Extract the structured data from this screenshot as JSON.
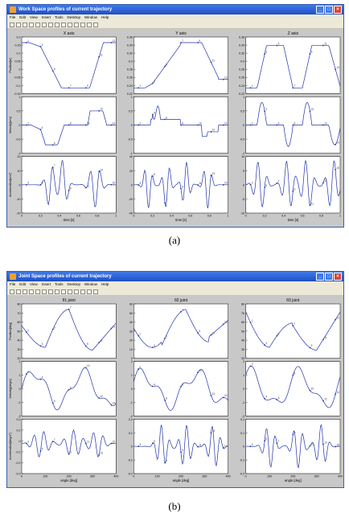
{
  "figure_a": {
    "window_title": "Work Space profiles of current trajectory",
    "caption": "(a)",
    "menu": [
      "File",
      "Edit",
      "View",
      "Insert",
      "Tools",
      "Desktop",
      "Window",
      "Help"
    ],
    "columns": [
      {
        "title": "X axis",
        "xlabel": "time [s]",
        "xlim": [
          0,
          1
        ]
      },
      {
        "title": "Y axis",
        "xlabel": "time [s]",
        "xlim": [
          0,
          1
        ]
      },
      {
        "title": "Z axis",
        "xlabel": "time [s]",
        "xlim": [
          0,
          1
        ]
      }
    ],
    "row_labels": [
      "Position[m]",
      "Velocity[m/s]",
      "Acceleration[m/s²]"
    ],
    "ticks": [
      [
        [
          "0.2",
          "0.15",
          "0.1",
          "0.05",
          "0",
          "-0.05",
          "-0.1",
          "-0.15"
        ],
        [
          "1",
          "0.5",
          "0",
          "-0.5",
          "-1"
        ],
        [
          "20",
          "10",
          "0",
          "-10",
          "-20"
        ]
      ],
      [
        [
          "0.36",
          "0.34",
          "0.32",
          "0.3",
          "0.28",
          "0.26",
          "0.24",
          "0.22"
        ],
        [
          "1",
          "0.5",
          "0",
          "-0.5",
          "-1"
        ],
        [
          "40",
          "20",
          "0",
          "-20",
          "-40"
        ]
      ],
      [
        [
          "0.36",
          "0.34",
          "0.32",
          "0.3",
          "0.28",
          "0.26",
          "0.24",
          "0.22"
        ],
        [
          "1",
          "0.5",
          "0",
          "-0.5",
          "-1"
        ],
        [
          "10",
          "5",
          "0",
          "-5",
          "-10"
        ]
      ]
    ],
    "xticks": [
      "0",
      "0.2",
      "0.4",
      "0.6",
      "0.8",
      "1"
    ]
  },
  "figure_b": {
    "window_title": "Joint Space profiles of current trajectory",
    "caption": "(b)",
    "menu": [
      "File",
      "Edit",
      "View",
      "Insert",
      "Tools",
      "Desktop",
      "Window",
      "Help"
    ],
    "columns": [
      {
        "title": "θ1 joint",
        "xlabel": "angle [deg]",
        "xlim": [
          0,
          400
        ]
      },
      {
        "title": "θ2 joint",
        "xlabel": "angle [deg]",
        "xlim": [
          0,
          400
        ]
      },
      {
        "title": "θ3 joint",
        "xlabel": "angle [deg]",
        "xlim": [
          0,
          400
        ]
      }
    ],
    "row_labels": [
      "Position[deg]",
      "Velocity[deg/s]",
      "Acceleration[deg/s²]"
    ],
    "ticks": [
      [
        [
          "80",
          "70",
          "60",
          "50",
          "40",
          "30",
          "20"
        ],
        [
          "2",
          "1",
          "0",
          "-1",
          "-2"
        ],
        [
          "0.2",
          "0.1",
          "0",
          "-0.1",
          "-0.2",
          "-0.3"
        ]
      ],
      [
        [
          "60",
          "50",
          "40",
          "30",
          "20",
          "10",
          "0"
        ],
        [
          "2",
          "1",
          "0",
          "-1",
          "-2"
        ],
        [
          "0.2",
          "0.1",
          "0",
          "-0.1",
          "-0.2"
        ]
      ],
      [
        [
          "80",
          "70",
          "60",
          "50",
          "40",
          "30",
          "20"
        ],
        [
          "2",
          "1",
          "0",
          "-1",
          "-2"
        ],
        [
          "0.2",
          "0.1",
          "0",
          "-0.1",
          "-0.2"
        ]
      ]
    ],
    "xticks": [
      "0",
      "100",
      "200",
      "300",
      "400"
    ]
  },
  "curve_color": "#2233aa",
  "point_labels": [
    "1",
    "2",
    "3",
    "4",
    "5",
    "6",
    "7",
    "8",
    "9",
    "10",
    "11",
    "12",
    "13",
    "14",
    "15",
    "16",
    "17",
    "18",
    "19"
  ]
}
